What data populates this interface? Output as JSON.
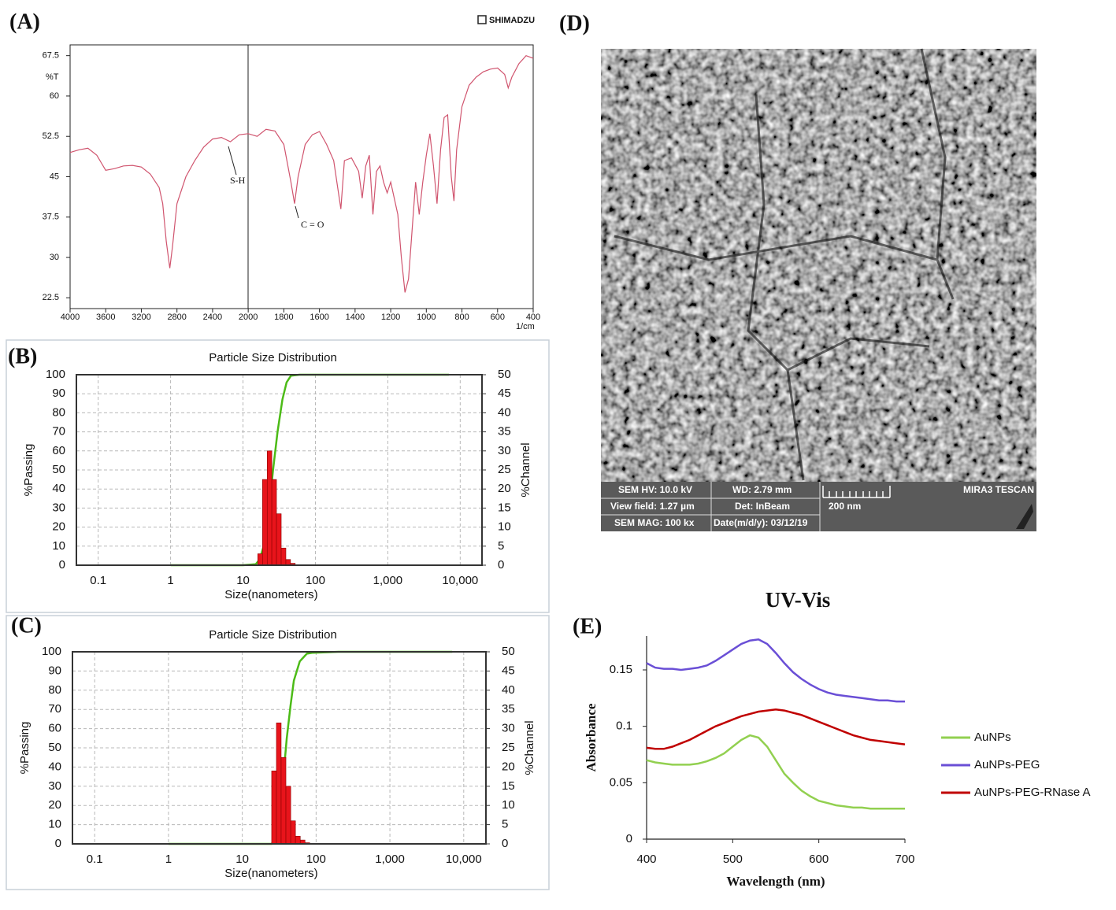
{
  "chart_data": [
    {
      "type": "line",
      "panel": "(A)",
      "logo": "SHIMADZU",
      "ylabel": "%T",
      "xlabel": "1/cm",
      "annotations": [
        "S-H",
        "C = O"
      ],
      "xlim": [
        4000,
        400
      ],
      "xbreak": 2000,
      "xbreak_factor": 2,
      "xticks": [
        4000,
        3600,
        3200,
        2800,
        2400,
        2000,
        1800,
        1600,
        1400,
        1200,
        1000,
        800,
        600,
        400
      ],
      "ylim": [
        20.5,
        69.5
      ],
      "yticks": [
        22.5,
        30,
        37.5,
        45,
        52.5,
        60,
        67.5
      ],
      "series": [
        {
          "color": "#d0546e",
          "x": [
            4000,
            3900,
            3800,
            3700,
            3600,
            3500,
            3400,
            3300,
            3200,
            3100,
            3000,
            2960,
            2920,
            2880,
            2850,
            2800,
            2700,
            2600,
            2500,
            2400,
            2300,
            2200,
            2100,
            2000,
            1950,
            1900,
            1850,
            1800,
            1760,
            1740,
            1720,
            1680,
            1640,
            1600,
            1560,
            1520,
            1480,
            1460,
            1420,
            1380,
            1360,
            1340,
            1320,
            1300,
            1280,
            1260,
            1240,
            1220,
            1200,
            1160,
            1140,
            1120,
            1100,
            1080,
            1060,
            1040,
            1020,
            1000,
            980,
            960,
            940,
            920,
            900,
            880,
            860,
            845,
            830,
            800,
            760,
            720,
            680,
            640,
            600,
            560,
            540,
            520,
            480,
            440,
            400
          ],
          "values": [
            49.5,
            50,
            50.3,
            49,
            46.2,
            46.5,
            47,
            47.1,
            46.8,
            45.5,
            43,
            40,
            33,
            28,
            32,
            40,
            45,
            48,
            50.5,
            52,
            52.3,
            51.5,
            52.8,
            53,
            52.5,
            53.8,
            53.5,
            51,
            44,
            40,
            45,
            51,
            52.8,
            53.4,
            51,
            48,
            39,
            48,
            48.5,
            46,
            41,
            47,
            49,
            38,
            46,
            47,
            44,
            42,
            44,
            38,
            30,
            23.5,
            26,
            35,
            44,
            38,
            44,
            49,
            53,
            47,
            40,
            50,
            56,
            56.5,
            45,
            40.5,
            50,
            58,
            62,
            63.5,
            64.5,
            65,
            65.2,
            64,
            61.5,
            63.5,
            66,
            67.5,
            67
          ]
        }
      ]
    },
    {
      "type": "histogram",
      "panel": "(B)",
      "title": "Particle Size Distribution",
      "xlabel": "Size(nanometers)",
      "ylabel": "%Passing",
      "y2label": "%Channel",
      "grid": true,
      "xlog": true,
      "xlim": [
        0.05,
        20000
      ],
      "xticks": [
        0.1,
        1,
        10,
        100,
        {
          "value": 1000,
          "label": "1,000"
        },
        {
          "value": 10000,
          "label": "10,000"
        }
      ],
      "ylim": [
        0,
        100
      ],
      "yticks": [
        0,
        10,
        20,
        30,
        40,
        50,
        60,
        70,
        80,
        90,
        100
      ],
      "y2lim": [
        0,
        50
      ],
      "y2ticks": [
        0,
        5,
        10,
        15,
        20,
        25,
        30,
        35,
        40,
        45,
        50
      ],
      "series": [
        {
          "color": "#4cbb17",
          "x": [
            1,
            10,
            15,
            17,
            20,
            23,
            26,
            30,
            35,
            40,
            46,
            60,
            100,
            1000,
            7000
          ],
          "values": [
            0,
            0,
            0.5,
            3,
            12,
            30,
            50,
            70,
            87,
            96,
            99.5,
            100,
            100,
            100,
            100
          ]
        },
        {
          "color": "#e8141b",
          "axis": "y2",
          "bins": [
            16,
            18.6,
            21.6,
            25,
            29,
            33.7,
            39.1,
            45.3,
            52.6
          ],
          "values": [
            3,
            22.5,
            30,
            22.5,
            13.5,
            4.5,
            1.5,
            0.5
          ]
        }
      ]
    },
    {
      "type": "histogram",
      "panel": "(C)",
      "title": "Particle Size Distribution",
      "xlabel": "Size(nanometers)",
      "ylabel": "%Passing",
      "y2label": "%Channel",
      "grid": true,
      "xlog": true,
      "xlim": [
        0.05,
        20000
      ],
      "xticks": [
        0.1,
        1,
        10,
        100,
        {
          "value": 1000,
          "label": "1,000"
        },
        {
          "value": 10000,
          "label": "10,000"
        }
      ],
      "ylim": [
        0,
        100
      ],
      "yticks": [
        0,
        10,
        20,
        30,
        40,
        50,
        60,
        70,
        80,
        90,
        100
      ],
      "y2lim": [
        0,
        50
      ],
      "y2ticks": [
        0,
        5,
        10,
        15,
        20,
        25,
        30,
        35,
        40,
        45,
        50
      ],
      "series": [
        {
          "color": "#4cbb17",
          "x": [
            1,
            10,
            25,
            28,
            32,
            36,
            40,
            45,
            50,
            60,
            75,
            90,
            200,
            1000,
            7000
          ],
          "values": [
            0,
            0,
            0,
            3,
            15,
            35,
            55,
            72,
            85,
            95,
            99,
            99.5,
            100,
            100,
            100
          ]
        },
        {
          "color": "#e8141b",
          "axis": "y2",
          "bins": [
            25,
            29,
            33.6,
            39,
            45.3,
            52.5,
            61,
            70.7,
            82
          ],
          "values": [
            19,
            31.5,
            22.5,
            15,
            6,
            2,
            1,
            0.3
          ]
        }
      ]
    },
    {
      "type": "line",
      "panel": "(E)",
      "title": "UV-Vis",
      "xlabel": "Wavelength (nm)",
      "ylabel": "Absorbance",
      "legend": "right",
      "xlim": [
        400,
        700
      ],
      "xticks": [
        400,
        500,
        600,
        700
      ],
      "ylim": [
        0,
        0.18
      ],
      "yticks": [
        0,
        0.05,
        0.1,
        0.15
      ],
      "x": [
        400,
        410,
        420,
        430,
        440,
        450,
        460,
        470,
        480,
        490,
        500,
        510,
        520,
        530,
        540,
        550,
        560,
        570,
        580,
        590,
        600,
        610,
        620,
        630,
        640,
        650,
        660,
        670,
        680,
        690,
        700
      ],
      "series": [
        {
          "name": "AuNPs",
          "color": "#92d050",
          "values": [
            0.07,
            0.068,
            0.067,
            0.066,
            0.066,
            0.066,
            0.067,
            0.069,
            0.072,
            0.076,
            0.082,
            0.088,
            0.092,
            0.09,
            0.082,
            0.07,
            0.058,
            0.05,
            0.043,
            0.038,
            0.034,
            0.032,
            0.03,
            0.029,
            0.028,
            0.028,
            0.027,
            0.027,
            0.027,
            0.027,
            0.027
          ]
        },
        {
          "name": "AuNPs-PEG",
          "color": "#6a4fd6",
          "values": [
            0.156,
            0.152,
            0.151,
            0.151,
            0.15,
            0.151,
            0.152,
            0.154,
            0.158,
            0.163,
            0.168,
            0.173,
            0.176,
            0.177,
            0.173,
            0.165,
            0.156,
            0.148,
            0.142,
            0.137,
            0.133,
            0.13,
            0.128,
            0.127,
            0.126,
            0.125,
            0.124,
            0.123,
            0.123,
            0.122,
            0.122
          ]
        },
        {
          "name": "AuNPs-PEG-RNase A",
          "color": "#c00000",
          "values": [
            0.081,
            0.08,
            0.08,
            0.082,
            0.085,
            0.088,
            0.092,
            0.096,
            0.1,
            0.103,
            0.106,
            0.109,
            0.111,
            0.113,
            0.114,
            0.115,
            0.114,
            0.112,
            0.11,
            0.107,
            0.104,
            0.101,
            0.098,
            0.095,
            0.092,
            0.09,
            0.088,
            0.087,
            0.086,
            0.085,
            0.084
          ]
        }
      ]
    }
  ],
  "sem_image": {
    "panel": "(D)",
    "info": [
      [
        "SEM HV: 10.0 kV",
        "WD: 2.79 mm",
        "MIRA3 TESCAN"
      ],
      [
        "View field: 1.27 µm",
        "Det: InBeam",
        "200 nm"
      ],
      [
        "SEM MAG: 100 kx",
        "Date(m/d/y): 03/12/19"
      ]
    ]
  }
}
